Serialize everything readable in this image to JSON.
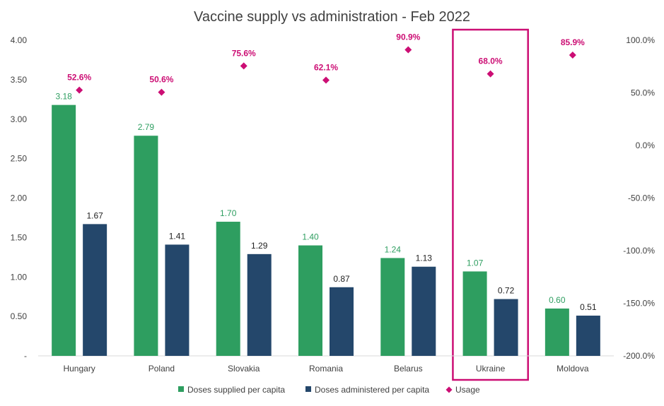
{
  "chart_data": {
    "type": "bar",
    "title": "Vaccine supply vs administration - Feb 2022",
    "categories": [
      "Hungary",
      "Poland",
      "Slovakia",
      "Romania",
      "Belarus",
      "Ukraine",
      "Moldova"
    ],
    "series": [
      {
        "name": "Doses supplied per capita",
        "type": "bar",
        "axis": "left",
        "color": "#2e9e60",
        "values": [
          3.18,
          2.79,
          1.7,
          1.4,
          1.24,
          1.07,
          0.6
        ],
        "labels": [
          "3.18",
          "2.79",
          "1.70",
          "1.40",
          "1.24",
          "1.07",
          "0.60"
        ]
      },
      {
        "name": "Doses administered per capita",
        "type": "bar",
        "axis": "left",
        "color": "#24476b",
        "values": [
          1.67,
          1.41,
          1.29,
          0.87,
          1.13,
          0.72,
          0.51
        ],
        "labels": [
          "1.67",
          "1.41",
          "1.29",
          "0.87",
          "1.13",
          "0.72",
          "0.51"
        ]
      },
      {
        "name": "Usage",
        "type": "scatter",
        "axis": "right",
        "marker": "diamond",
        "color": "#cc0e74",
        "values": [
          52.6,
          50.6,
          75.6,
          62.1,
          90.9,
          68.0,
          85.9
        ],
        "labels": [
          "52.6%",
          "50.6%",
          "75.6%",
          "62.1%",
          "90.9%",
          "68.0%",
          "85.9%"
        ]
      }
    ],
    "y_left": {
      "ylim": [
        0,
        4
      ],
      "ticks": [
        0,
        0.5,
        1.0,
        1.5,
        2.0,
        2.5,
        3.0,
        3.5,
        4.0
      ],
      "tick_labels": [
        "-",
        "0.50",
        "1.00",
        "1.50",
        "2.00",
        "2.50",
        "3.00",
        "3.50",
        "4.00"
      ]
    },
    "y_right": {
      "ylim": [
        -200,
        100
      ],
      "ticks": [
        -200,
        -150,
        -100,
        -50,
        0,
        50,
        100
      ],
      "tick_labels": [
        "-200.0%",
        "-150.0%",
        "-100.0%",
        "-50.0%",
        "0.0%",
        "50.0%",
        "100.0%"
      ]
    },
    "highlight": {
      "category": "Ukraine",
      "color": "#cc0e74"
    },
    "legend": {
      "position": "bottom",
      "items": [
        "Doses supplied per capita",
        "Doses administered per capita",
        "Usage"
      ]
    },
    "grid": false
  }
}
